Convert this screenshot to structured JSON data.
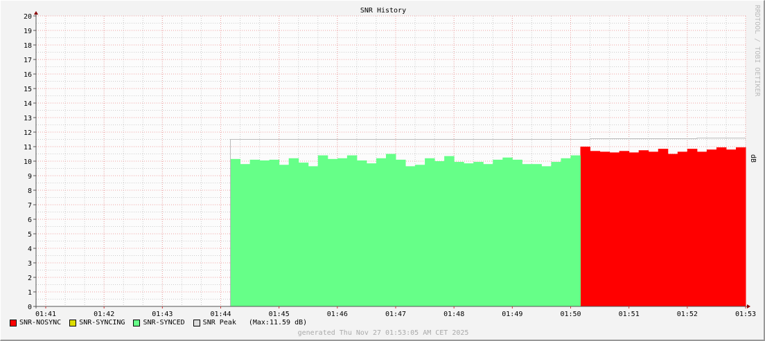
{
  "chart_data": {
    "type": "area",
    "title": "SNR History",
    "ylabel": "dB",
    "watermark": "RRDTOOL / TOBI OETIKER",
    "ylim": [
      0,
      20
    ],
    "yticks": [
      0,
      1,
      2,
      3,
      4,
      5,
      6,
      7,
      8,
      9,
      10,
      11,
      12,
      13,
      14,
      15,
      16,
      17,
      18,
      19,
      20
    ],
    "xlim": [
      "01:41",
      "01:53"
    ],
    "xticks": [
      "01:41",
      "01:42",
      "01:43",
      "01:44",
      "01:45",
      "01:46",
      "01:47",
      "01:48",
      "01:49",
      "01:50",
      "01:51",
      "01:52",
      "01:53"
    ],
    "grid": true,
    "legend_position": "bottom-left",
    "series": [
      {
        "name": "SNR-NOSYNC",
        "color": "#ff0000",
        "x": [
          "01:50:10",
          "01:50:20",
          "01:50:30",
          "01:50:40",
          "01:50:50",
          "01:51:00",
          "01:51:10",
          "01:51:20",
          "01:51:30",
          "01:51:40",
          "01:51:50",
          "01:52:00",
          "01:52:10",
          "01:52:20",
          "01:52:30",
          "01:52:40",
          "01:52:50"
        ],
        "values": [
          11.0,
          10.7,
          10.65,
          10.6,
          10.7,
          10.6,
          10.75,
          10.65,
          10.85,
          10.5,
          10.65,
          10.85,
          10.65,
          10.8,
          10.95,
          10.8,
          10.95
        ]
      },
      {
        "name": "SNR-SYNCING",
        "color": "#dddd00",
        "x": [],
        "values": []
      },
      {
        "name": "SNR-SYNCED",
        "color": "#66ff88",
        "x": [
          "01:44:10",
          "01:44:20",
          "01:44:30",
          "01:44:40",
          "01:44:50",
          "01:45:00",
          "01:45:10",
          "01:45:20",
          "01:45:30",
          "01:45:40",
          "01:45:50",
          "01:46:00",
          "01:46:10",
          "01:46:20",
          "01:46:30",
          "01:46:40",
          "01:46:50",
          "01:47:00",
          "01:47:10",
          "01:47:20",
          "01:47:30",
          "01:47:40",
          "01:47:50",
          "01:48:00",
          "01:48:10",
          "01:48:20",
          "01:48:30",
          "01:48:40",
          "01:48:50",
          "01:49:00",
          "01:49:10",
          "01:49:20",
          "01:49:30",
          "01:49:40",
          "01:49:50",
          "01:50:00"
        ],
        "values": [
          10.15,
          9.8,
          10.1,
          10.05,
          10.1,
          9.75,
          10.2,
          9.9,
          9.65,
          10.4,
          10.15,
          10.2,
          10.4,
          10.05,
          9.85,
          10.2,
          10.5,
          10.1,
          9.65,
          9.75,
          10.2,
          10.0,
          10.35,
          9.95,
          9.85,
          9.95,
          9.8,
          10.1,
          10.25,
          10.1,
          9.8,
          9.8,
          9.65,
          9.95,
          10.2,
          10.4
        ]
      },
      {
        "name": "SNR Peak",
        "color": "#bbbbbb",
        "line": true,
        "x": [
          "01:44:10",
          "01:50:20",
          "01:52:10",
          "01:53:00"
        ],
        "values": [
          11.5,
          11.55,
          11.59,
          11.59
        ]
      }
    ]
  },
  "legend": {
    "items": [
      {
        "label": "SNR-NOSYNC",
        "color": "#ff0000"
      },
      {
        "label": "SNR-SYNCING",
        "color": "#dddd00"
      },
      {
        "label": "SNR-SYNCED",
        "color": "#66ff88"
      },
      {
        "label": "SNR Peak",
        "color": "#dddddd"
      }
    ],
    "max_note": "(Max:11.59 dB)"
  },
  "footer": "generated Thu Nov 27 01:53:05 AM CET 2025"
}
